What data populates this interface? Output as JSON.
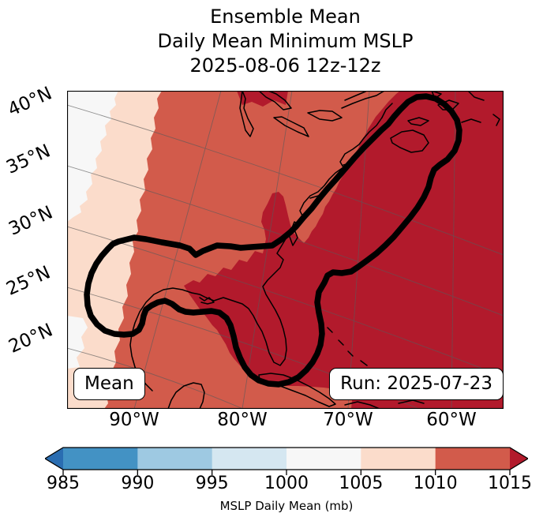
{
  "title": {
    "line1": "Ensemble Mean",
    "line2": "Daily Mean Minimum MSLP",
    "line3": "2025-08-06 12z-12z"
  },
  "map": {
    "lat_labels": [
      "40°N",
      "35°N",
      "30°N",
      "25°N",
      "20°N"
    ],
    "lon_labels": [
      "90°W",
      "80°W",
      "70°W",
      "60°W"
    ],
    "corner_label": "Mean",
    "run_label": "Run: 2025-07-23"
  },
  "colorbar": {
    "label": "MSLP Daily Mean (mb)",
    "ticks": [
      "985",
      "990",
      "995",
      "1000",
      "1005",
      "1010",
      "1015"
    ],
    "colors": [
      "#4392c4",
      "#9ec9e2",
      "#d5e7f1",
      "#f7f7f7",
      "#fbdccb",
      "#d25b4b"
    ],
    "extend_left_color": "#2a6db1",
    "extend_right_color": "#b21a2c",
    "extend": "both"
  },
  "colors": {
    "medium_red": "#d25b4b",
    "dark_red": "#b21a2c",
    "peach": "#fbdccb",
    "near_white": "#f7f7f7",
    "grid_gray": "#5a5a5a",
    "coast_black": "#000000",
    "contour_black": "#000000"
  },
  "chart_data": {
    "type": "heatmap",
    "title": "Ensemble Mean",
    "subtitle": "Daily Mean Minimum MSLP",
    "valid_time": "2025-08-06 12z-12z",
    "run_time": "Run: 2025-07-23",
    "member_label": "Mean",
    "colorbar_label": "MSLP Daily Mean (mb)",
    "colorbar_ticks": [
      985,
      990,
      995,
      1000,
      1005,
      1010,
      1015
    ],
    "colorbar_extend": "both",
    "colormap": "RdBu_r (blue low MSLP to red high MSLP)",
    "x_tick_labels": [
      "90°W",
      "80°W",
      "70°W",
      "60°W"
    ],
    "y_tick_labels": [
      "40°N",
      "35°N",
      "30°N",
      "25°N",
      "20°N"
    ],
    "projection": "rotated conic over eastern North America / western Atlantic",
    "field_regions": [
      {
        "area": "far northwest corner of map",
        "value_mb": "1000-1005"
      },
      {
        "area": "narrow band along western edge",
        "value_mb": "1005-1010"
      },
      {
        "area": "central US, Great Lakes, western Gulf of Mexico, Yucatan, Caribbean fringe",
        "value_mb": "1010-1015"
      },
      {
        "area": "western Atlantic, US East Coast, eastern Gulf, Florida, Nova Scotia and eastward",
        "value_mb": "greater than 1015"
      }
    ],
    "thick_contour": "single thick black closed contour running from a lobe over the Texas/Gulf coast northeastward along the East Coast to a rounded head over Nova Scotia, with a southern lobe dipping over Florida and Cuba",
    "grid": true,
    "legend_position": "horizontal colorbar below map"
  }
}
